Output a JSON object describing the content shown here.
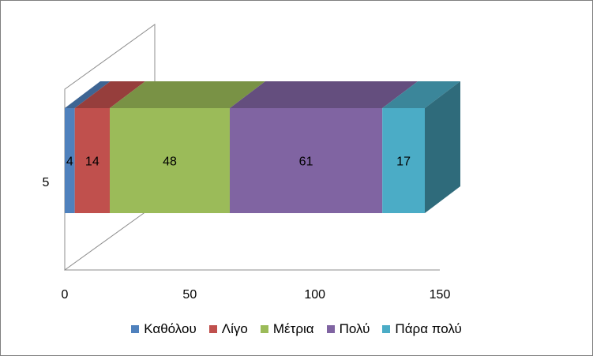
{
  "chart_data": {
    "type": "bar",
    "orientation": "horizontal",
    "stacked": true,
    "style": "3d",
    "categories": [
      "5"
    ],
    "series": [
      {
        "name": "Καθόλου",
        "values": [
          4
        ],
        "color": "#4f81bd"
      },
      {
        "name": "Λίγο",
        "values": [
          14
        ],
        "color": "#c0504d"
      },
      {
        "name": "Μέτρια",
        "values": [
          48
        ],
        "color": "#9bbb59"
      },
      {
        "name": "Πολύ",
        "values": [
          61
        ],
        "color": "#8064a2"
      },
      {
        "name": "Πάρα πολύ",
        "values": [
          17
        ],
        "color": "#4bacc6"
      }
    ],
    "xlim": [
      0,
      150
    ],
    "xticks": [
      "0",
      "50",
      "100",
      "150"
    ],
    "legend_position": "bottom",
    "grid": false
  }
}
